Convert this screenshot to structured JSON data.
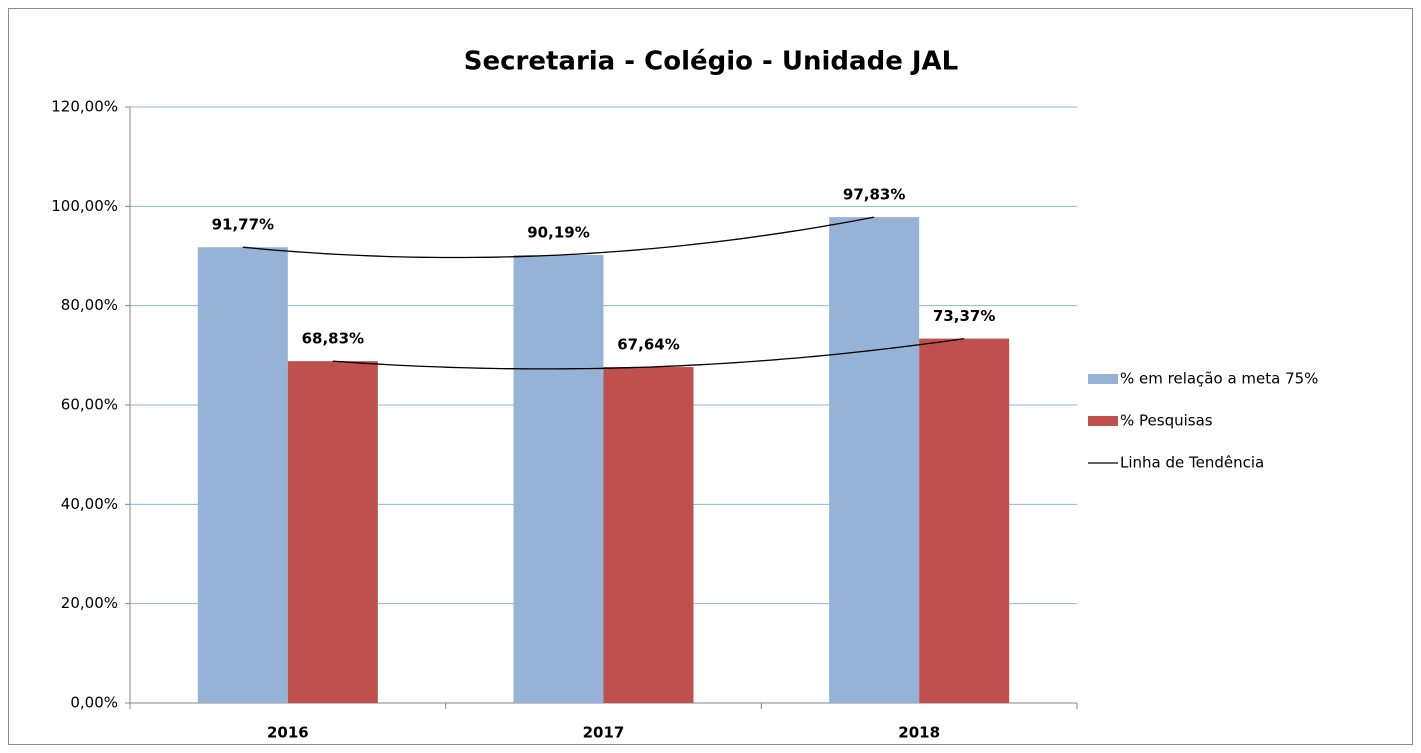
{
  "chart_data": {
    "type": "bar",
    "title": "Secretaria - Colégio - Unidade JAL",
    "categories": [
      "2016",
      "2017",
      "2018"
    ],
    "series": [
      {
        "name": "% em relação a meta 75%",
        "color": "#95b3d7",
        "values": [
          91.77,
          90.19,
          97.83
        ],
        "value_labels": [
          "91,77%",
          "90,19%",
          "97,83%"
        ]
      },
      {
        "name": "% Pesquisas",
        "color": "#c0504d",
        "values": [
          68.83,
          67.64,
          73.37
        ],
        "value_labels": [
          "68,83%",
          "67,64%",
          "73,37%"
        ]
      }
    ],
    "trendline": {
      "name": "Linha de Tendência",
      "color": "#000000"
    },
    "ylim": [
      0,
      120
    ],
    "yticks": [
      {
        "value": 0,
        "label": "0,00%"
      },
      {
        "value": 20,
        "label": "20,00%"
      },
      {
        "value": 40,
        "label": "40,00%"
      },
      {
        "value": 60,
        "label": "60,00%"
      },
      {
        "value": 80,
        "label": "80,00%"
      },
      {
        "value": 100,
        "label": "100,00%"
      },
      {
        "value": 120,
        "label": "120,00%"
      }
    ],
    "grid": true,
    "legend": "right"
  }
}
